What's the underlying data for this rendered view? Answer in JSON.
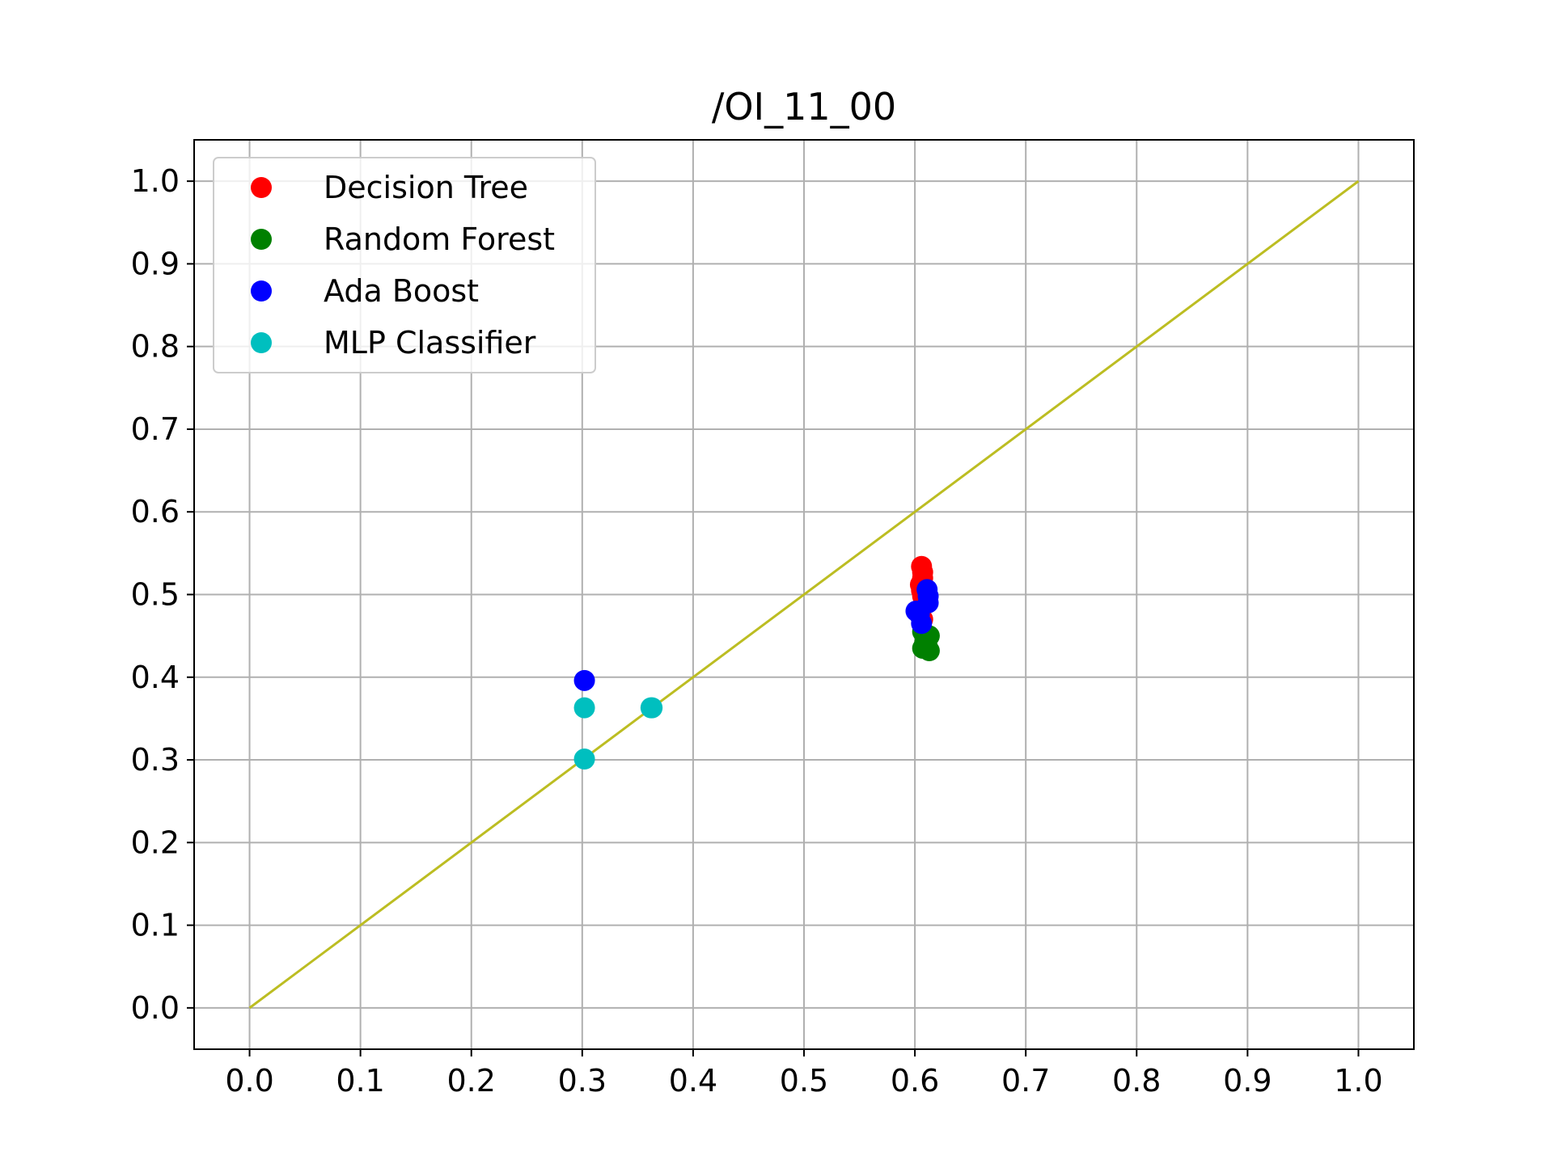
{
  "chart_data": {
    "type": "scatter",
    "title": "/OI_11_00",
    "xlabel": "",
    "ylabel": "",
    "xlim": [
      -0.05,
      1.05
    ],
    "ylim": [
      -0.05,
      1.05
    ],
    "xticks": [
      "0.0",
      "0.1",
      "0.2",
      "0.3",
      "0.4",
      "0.5",
      "0.6",
      "0.7",
      "0.8",
      "0.9",
      "1.0"
    ],
    "yticks": [
      "0.0",
      "0.1",
      "0.2",
      "0.3",
      "0.4",
      "0.5",
      "0.6",
      "0.7",
      "0.8",
      "0.9",
      "1.0"
    ],
    "grid": true,
    "legend_position": "upper-left",
    "series": [
      {
        "name": "Decision Tree",
        "color": "#ff0000",
        "points": [
          [
            0.606,
            0.534
          ],
          [
            0.607,
            0.527
          ],
          [
            0.607,
            0.52
          ],
          [
            0.605,
            0.512
          ],
          [
            0.606,
            0.505
          ],
          [
            0.607,
            0.498
          ],
          [
            0.607,
            0.47
          ]
        ]
      },
      {
        "name": "Random Forest",
        "color": "#008000",
        "points": [
          [
            0.607,
            0.455
          ],
          [
            0.613,
            0.45
          ],
          [
            0.609,
            0.442
          ],
          [
            0.611,
            0.438
          ],
          [
            0.607,
            0.435
          ],
          [
            0.613,
            0.432
          ]
        ]
      },
      {
        "name": "Ada Boost",
        "color": "#0000ff",
        "points": [
          [
            0.302,
            0.396
          ],
          [
            0.611,
            0.506
          ],
          [
            0.612,
            0.498
          ],
          [
            0.612,
            0.49
          ],
          [
            0.601,
            0.48
          ],
          [
            0.604,
            0.476
          ],
          [
            0.606,
            0.465
          ]
        ]
      },
      {
        "name": "MLP Classifier",
        "color": "#00bfbf",
        "points": [
          [
            0.302,
            0.363
          ],
          [
            0.302,
            0.301
          ],
          [
            0.362,
            0.363
          ],
          [
            0.363,
            0.363
          ]
        ]
      }
    ],
    "reference_line": {
      "color": "#bcbd22",
      "from": [
        0.0,
        0.0
      ],
      "to": [
        1.0,
        1.0
      ]
    }
  }
}
